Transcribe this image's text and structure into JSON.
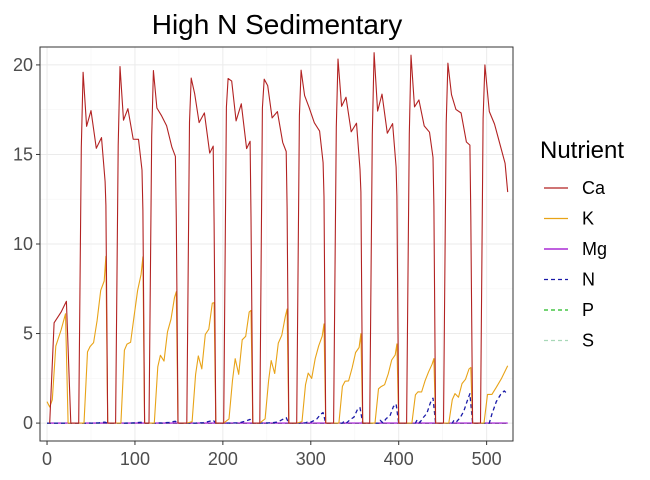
{
  "chart_data": {
    "type": "line",
    "title": "High N Sedimentary",
    "xlabel": "",
    "ylabel": "",
    "xlim": [
      -8,
      530
    ],
    "ylim": [
      -1,
      21
    ],
    "x_ticks": [
      0,
      100,
      200,
      300,
      400,
      500
    ],
    "y_ticks": [
      0,
      5,
      10,
      15,
      20
    ],
    "x_tick_labels": [
      "0",
      "100",
      "200",
      "300",
      "400",
      "500"
    ],
    "y_tick_labels": [
      "0",
      "5",
      "10",
      "15",
      "20"
    ],
    "grid": true,
    "legend": {
      "title": "Nutrient",
      "position": "right",
      "entries": [
        "Ca",
        "K",
        "Mg",
        "N",
        "P",
        "S"
      ]
    },
    "cycles": {
      "starts": [
        36,
        78,
        116,
        159,
        201,
        242,
        284,
        326,
        367,
        409,
        451,
        493
      ],
      "end_x": 524
    },
    "series": [
      {
        "name": "Ca",
        "color": "#B22222",
        "dash": "solid",
        "init_segment": [
          [
            3,
            0
          ],
          [
            8,
            5.6
          ],
          [
            16,
            6.2
          ],
          [
            22,
            6.8
          ],
          [
            27,
            0
          ],
          [
            36,
            0
          ]
        ],
        "cycle_points": [
          [
            0,
            0
          ],
          [
            3,
            16
          ],
          [
            5,
            18.9
          ],
          [
            9,
            17.3
          ],
          [
            14,
            16.7
          ],
          [
            20,
            16.1
          ],
          [
            26,
            15.2
          ],
          [
            30,
            14.2
          ],
          [
            31,
            11.5
          ],
          [
            33,
            0
          ]
        ],
        "peaks": [
          18.9,
          19.2,
          19.4,
          19.6,
          20.0,
          19.9,
          19.9,
          19.9,
          19.9,
          19.9,
          20.0,
          20.0
        ],
        "final_partial": [
          [
            0,
            0
          ],
          [
            3,
            17
          ],
          [
            5,
            20
          ],
          [
            10,
            17.4
          ],
          [
            16,
            16.7
          ],
          [
            22,
            15.6
          ],
          [
            28,
            14.5
          ],
          [
            31,
            12.9
          ]
        ]
      },
      {
        "name": "K",
        "color": "#E8A317",
        "dash": "solid",
        "init_segment": [
          [
            0,
            1.2
          ],
          [
            3,
            0.9
          ],
          [
            6,
            1.3
          ],
          [
            10,
            4.3
          ],
          [
            16,
            5.2
          ],
          [
            21,
            6.1
          ],
          [
            24,
            0
          ],
          [
            36,
            0
          ]
        ],
        "cycle_points": [
          [
            0,
            0
          ],
          [
            6,
            0
          ],
          [
            10,
            3.0
          ],
          [
            13,
            3.8
          ],
          [
            17,
            3.4
          ],
          [
            21,
            5.0
          ],
          [
            25,
            5.8
          ],
          [
            29,
            6.8
          ],
          [
            31,
            7.4
          ],
          [
            33,
            0
          ]
        ],
        "peaks": [
          9.0,
          9.2,
          7.5,
          7.0,
          6.5,
          6.4,
          5.4,
          4.8,
          4.3,
          3.6,
          3.2,
          3.0
        ],
        "final_partial": [
          [
            0,
            0
          ],
          [
            4,
            0
          ],
          [
            8,
            1.6
          ],
          [
            13,
            1.6
          ],
          [
            18,
            2.0
          ],
          [
            24,
            2.5
          ],
          [
            31,
            3.2
          ]
        ]
      },
      {
        "name": "Mg",
        "color": "#9900CC",
        "dash": "solid",
        "values_constant": 0
      },
      {
        "name": "N",
        "color": "#1a1aa8",
        "dash": "dashed",
        "init_segment": [
          [
            0,
            0
          ],
          [
            36,
            0
          ]
        ],
        "cycle_points": [
          [
            0,
            0
          ],
          [
            10,
            0
          ],
          [
            12,
            0.1
          ],
          [
            15,
            0.05
          ],
          [
            19,
            0.2
          ],
          [
            23,
            0.4
          ],
          [
            27,
            0.8
          ],
          [
            30,
            1.0
          ],
          [
            33,
            0
          ]
        ],
        "peaks": [
          0.05,
          0.05,
          0.1,
          0.15,
          0.2,
          0.3,
          0.6,
          0.9,
          1.1,
          1.4,
          1.6,
          1.8
        ],
        "final_partial": [
          [
            0,
            0
          ],
          [
            10,
            0
          ],
          [
            13,
            0.5
          ],
          [
            18,
            1.2
          ],
          [
            23,
            1.6
          ],
          [
            27,
            1.8
          ],
          [
            29,
            1.7
          ]
        ]
      },
      {
        "name": "P",
        "color": "#22bb22",
        "dash": "dashed",
        "values_constant": 0
      },
      {
        "name": "S",
        "color": "#a8d8b8",
        "dash": "dashed",
        "values_constant": 0
      }
    ]
  },
  "colors": {
    "panel_border": "#333333",
    "grid_major": "#ebebeb",
    "grid_minor": "#f5f5f5",
    "tick": "#333333"
  }
}
